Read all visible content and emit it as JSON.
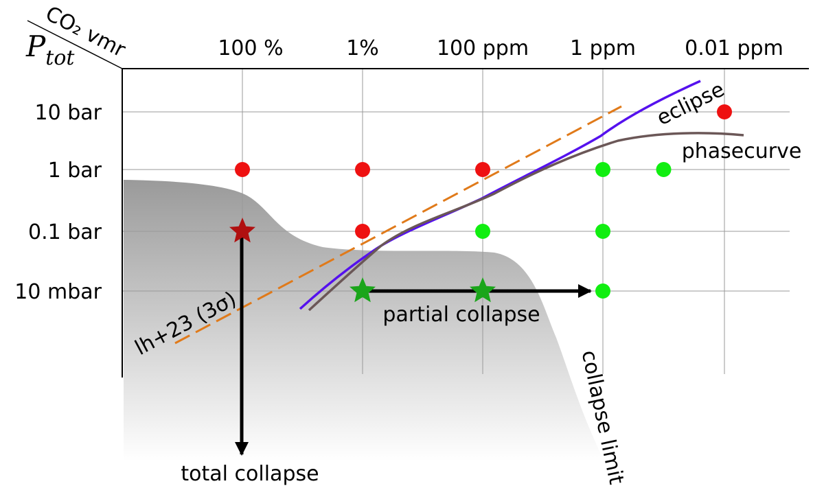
{
  "header": {
    "col_axis_label": "CO₂ vmr",
    "row_axis_label_main": "P",
    "row_axis_label_sub": "tot"
  },
  "columns": [
    "100 %",
    "1%",
    "100 ppm",
    "1 ppm",
    "0.01 ppm"
  ],
  "rows": [
    "10 bar",
    "1 bar",
    "0.1 bar",
    "10 mbar"
  ],
  "markers": {
    "red_dots": [
      [
        4,
        0
      ],
      [
        0,
        1
      ],
      [
        1,
        1
      ],
      [
        2,
        1
      ],
      [
        1,
        2
      ]
    ],
    "green_dots": [
      [
        3,
        1
      ],
      [
        3.5,
        1
      ],
      [
        2,
        2
      ],
      [
        3,
        2
      ],
      [
        3,
        3
      ]
    ],
    "red_stars": [
      [
        0,
        2
      ]
    ],
    "green_stars": [
      [
        1,
        3
      ],
      [
        2,
        3
      ]
    ]
  },
  "colors": {
    "red": "#ee1111",
    "green": "#11ee11",
    "dark_red_star": "#b01010",
    "green_star": "#1aa51a",
    "eclipse": "#5511ee",
    "phasecurve": "#6b5757",
    "lh_line": "#e07a1a",
    "lh_text": "#c85a10"
  },
  "annotations": {
    "eclipse": "eclipse",
    "phasecurve": "phasecurve",
    "lh": "lh+23 (3σ)",
    "partial": "partial collapse",
    "total": "total collapse",
    "limit": "collapse limit"
  }
}
